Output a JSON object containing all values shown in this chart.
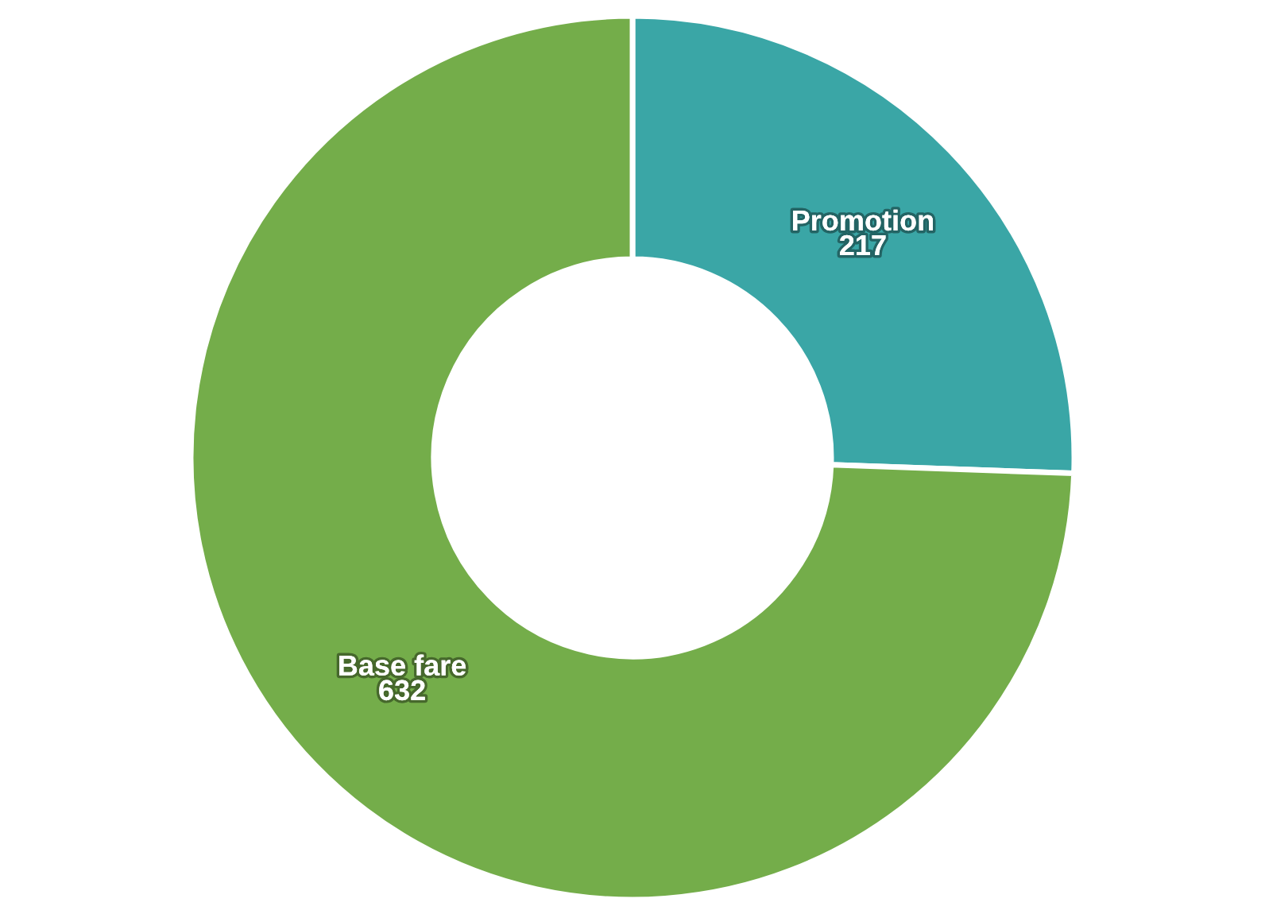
{
  "chart_data": {
    "type": "donut",
    "categories": [
      "Promotion",
      "Base fare"
    ],
    "values": [
      217,
      632
    ],
    "colors": [
      "#3aa6a6",
      "#74ad4a"
    ],
    "data_labels": true
  }
}
